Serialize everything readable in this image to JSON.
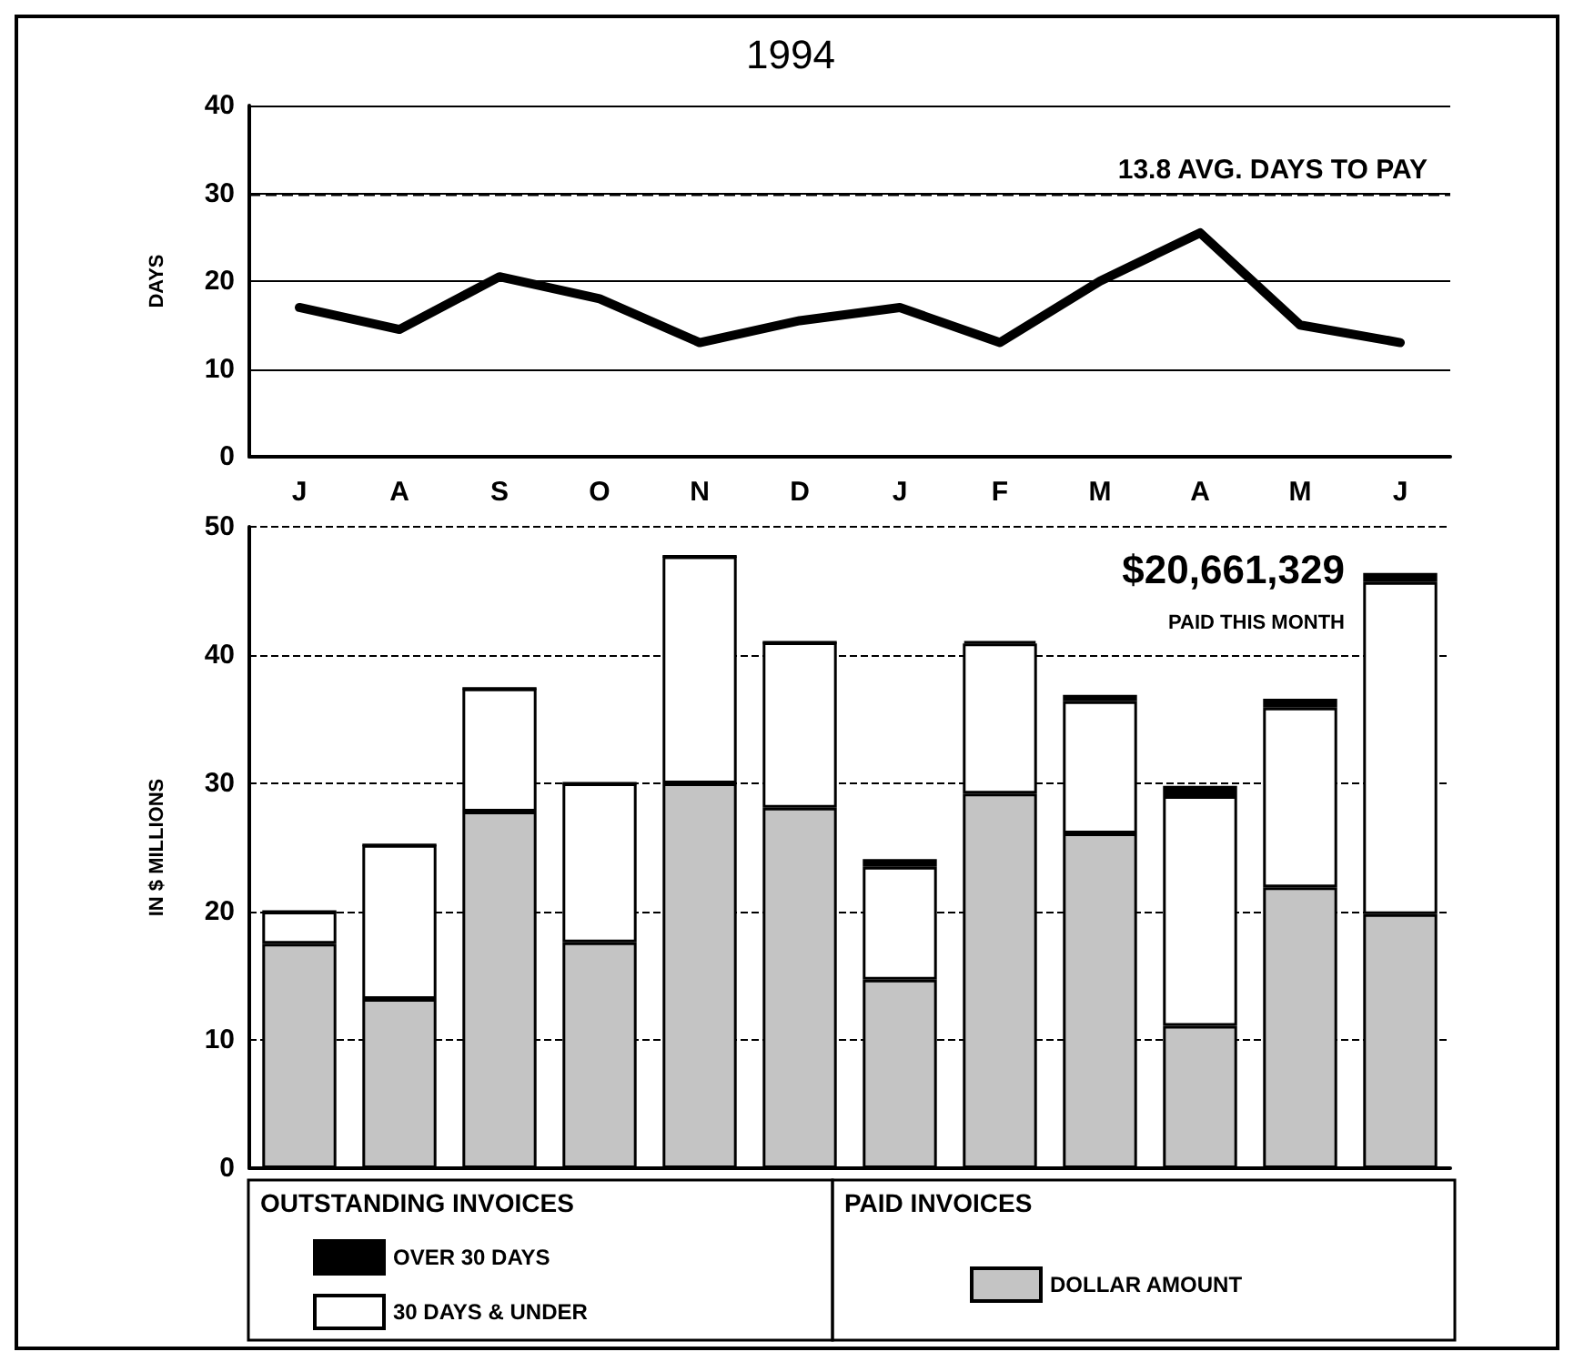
{
  "chart_data": [
    {
      "type": "line",
      "title": "1994",
      "ylabel": "DAYS",
      "categories": [
        "J",
        "A",
        "S",
        "O",
        "N",
        "D",
        "J",
        "F",
        "M",
        "A",
        "M",
        "J"
      ],
      "series": [
        {
          "color": "#000000",
          "values": [
            17,
            14.5,
            20.5,
            18,
            13,
            15.5,
            17,
            13,
            20,
            25.5,
            15,
            13
          ]
        }
      ],
      "ylim": [
        0,
        40
      ],
      "yticks": [
        0,
        10,
        20,
        30,
        40
      ],
      "grid": "y",
      "marker": "none",
      "line_style": "solid",
      "ref_lines": [
        {
          "axis": "y",
          "value": 30,
          "line_style": "dashed",
          "color": "#000000"
        }
      ],
      "annotations": [
        "13.8 AVG. DAYS TO PAY"
      ]
    },
    {
      "type": "bar",
      "stacked": true,
      "ylabel": "IN $ MILLIONS",
      "categories": [
        null,
        null,
        null,
        null,
        null,
        null,
        null,
        null,
        null,
        null,
        null,
        null
      ],
      "series": [
        {
          "name": "DOLLAR AMOUNT",
          "color": "#c4c4c4",
          "values": [
            17.5,
            13.2,
            27.8,
            17.6,
            30,
            28.1,
            14.7,
            29.2,
            26.1,
            11.1,
            21.9,
            19.8
          ]
        },
        {
          "name": "30 DAYS & UNDER",
          "color": "#ffffff",
          "values": [
            2.5,
            12,
            9.6,
            12.4,
            17.7,
            12.9,
            8.8,
            11.7,
            10.3,
            17.9,
            14,
            25.9
          ]
        },
        {
          "name": "OVER 30 DAYS",
          "color": "#000000",
          "values": [
            0,
            0,
            0,
            0,
            0,
            0,
            0.6,
            0.2,
            0.5,
            0.8,
            0.7,
            0.7
          ]
        }
      ],
      "ylim": [
        0,
        50
      ],
      "yticks": [
        0,
        10,
        20,
        30,
        40,
        50
      ],
      "grid": "y",
      "legend": "bottom",
      "annotations": [
        "$20,661,329",
        "PAID THIS MONTH",
        "OUTSTANDING INVOICES",
        "PAID INVOICES"
      ]
    }
  ]
}
